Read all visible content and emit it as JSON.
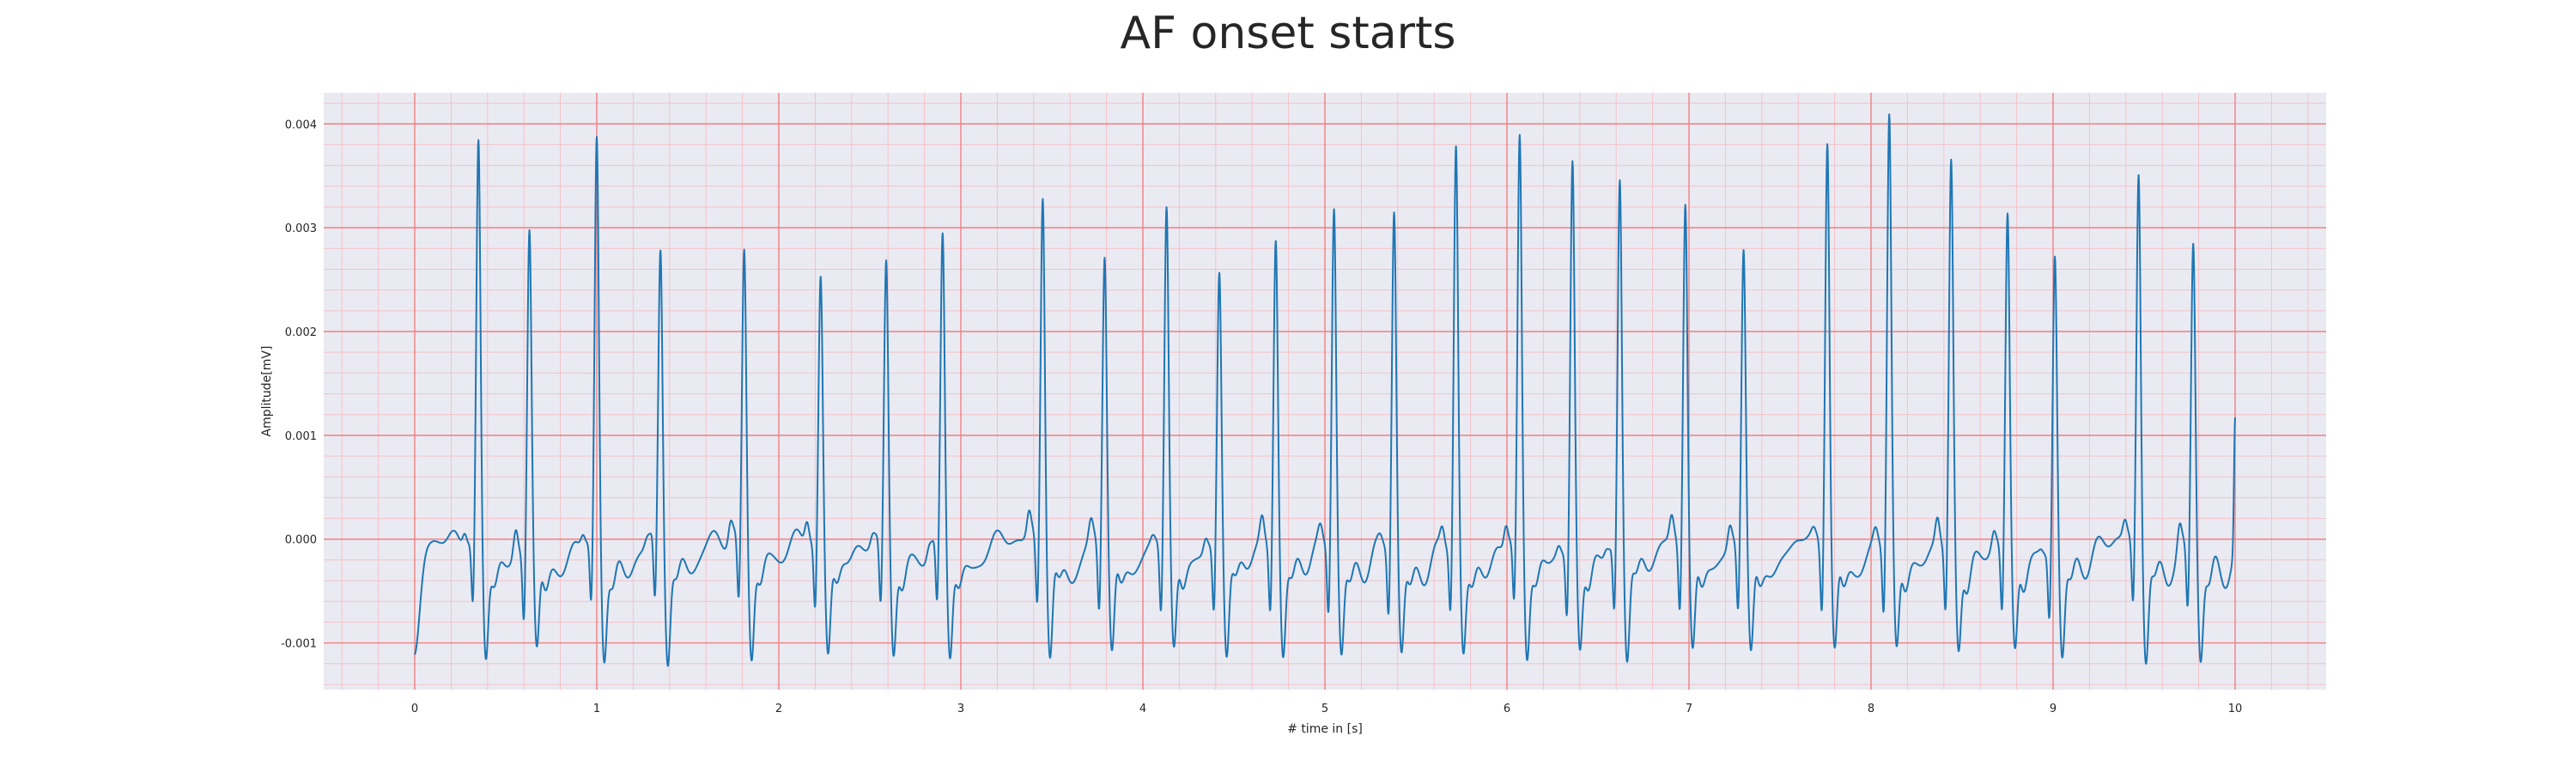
{
  "chart_data": {
    "type": "line",
    "title": "AF onset starts",
    "xlabel": "# time in [s]",
    "ylabel": "Amplitude[mV]",
    "xlim": [
      -0.5,
      10.5
    ],
    "ylim": [
      -0.00145,
      0.0043
    ],
    "x_ticks": [
      "0",
      "1",
      "2",
      "3",
      "4",
      "5",
      "6",
      "7",
      "8",
      "9",
      "10"
    ],
    "y_ticks": [
      "0.004",
      "0.003",
      "0.002",
      "0.001",
      "0.000",
      "-0.001"
    ],
    "x_tick_values": [
      0,
      1,
      2,
      3,
      4,
      5,
      6,
      7,
      8,
      9,
      10
    ],
    "y_tick_values": [
      0.004,
      0.003,
      0.002,
      0.001,
      0.0,
      -0.001
    ],
    "grid": true,
    "background_color": "#eaeaf2",
    "major_grid_color": "#f08080",
    "minor_grid_color": "#f4c2c8",
    "series": [
      {
        "color": "#1f77b4",
        "r_peaks": [
          {
            "t": 0.35,
            "amp": 0.00378
          },
          {
            "t": 0.63,
            "amp": 0.00303
          },
          {
            "t": 1.0,
            "amp": 0.0038
          },
          {
            "t": 1.35,
            "amp": 0.0028
          },
          {
            "t": 1.81,
            "amp": 0.00281
          },
          {
            "t": 2.23,
            "amp": 0.00253
          },
          {
            "t": 2.59,
            "amp": 0.00269
          },
          {
            "t": 2.9,
            "amp": 0.00293
          },
          {
            "t": 3.45,
            "amp": 0.00338
          },
          {
            "t": 3.79,
            "amp": 0.00281
          },
          {
            "t": 4.13,
            "amp": 0.00325
          },
          {
            "t": 4.42,
            "amp": 0.00262
          },
          {
            "t": 4.73,
            "amp": 0.00291
          },
          {
            "t": 5.05,
            "amp": 0.00322
          },
          {
            "t": 5.38,
            "amp": 0.00317
          },
          {
            "t": 5.72,
            "amp": 0.00375
          },
          {
            "t": 6.07,
            "amp": 0.00384
          },
          {
            "t": 6.36,
            "amp": 0.00362
          },
          {
            "t": 6.62,
            "amp": 0.00354
          },
          {
            "t": 6.98,
            "amp": 0.00329
          },
          {
            "t": 7.3,
            "amp": 0.00284
          },
          {
            "t": 7.76,
            "amp": 0.0039
          },
          {
            "t": 8.1,
            "amp": 0.00412
          },
          {
            "t": 8.44,
            "amp": 0.00362
          },
          {
            "t": 8.75,
            "amp": 0.00315
          },
          {
            "t": 9.01,
            "amp": 0.00278
          },
          {
            "t": 9.47,
            "amp": 0.00355
          },
          {
            "t": 9.77,
            "amp": 0.00286
          }
        ],
        "start": {
          "t": 0.0,
          "amp": -0.00115
        },
        "end": {
          "t": 10.0,
          "amp": 0.00126
        }
      }
    ]
  }
}
